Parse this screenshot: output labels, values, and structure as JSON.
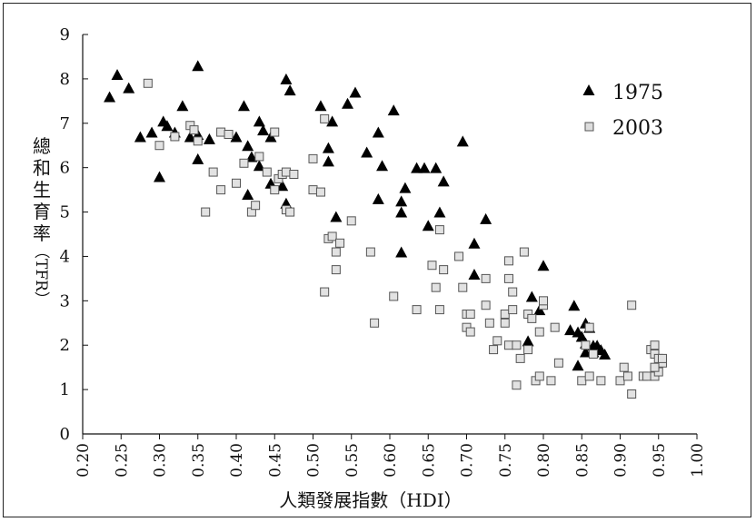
{
  "chart_data": {
    "type": "scatter",
    "title": "",
    "xlabel": "人類發展指數（HDI）",
    "ylabel_main": "總和生育率",
    "ylabel_abbrev": "（TFR）",
    "xlim": [
      0.2,
      1.0
    ],
    "ylim": [
      0,
      9
    ],
    "x_ticks": [
      "0.20",
      "0.25",
      "0.30",
      "0.35",
      "0.40",
      "0.45",
      "0.50",
      "0.55",
      "0.60",
      "0.65",
      "0.70",
      "0.75",
      "0.80",
      "0.85",
      "0.90",
      "0.95",
      "1.00"
    ],
    "y_ticks": [
      "0",
      "1",
      "2",
      "3",
      "4",
      "5",
      "6",
      "7",
      "8",
      "9"
    ],
    "grid": false,
    "legend_position": "top-right",
    "series": [
      {
        "name": "1975",
        "marker": "filled-triangle",
        "color": "#000000",
        "points": [
          [
            0.235,
            7.6
          ],
          [
            0.245,
            8.1
          ],
          [
            0.26,
            7.8
          ],
          [
            0.275,
            6.7
          ],
          [
            0.29,
            6.8
          ],
          [
            0.3,
            5.8
          ],
          [
            0.305,
            7.05
          ],
          [
            0.31,
            6.95
          ],
          [
            0.32,
            6.8
          ],
          [
            0.33,
            7.4
          ],
          [
            0.34,
            6.7
          ],
          [
            0.35,
            8.3
          ],
          [
            0.35,
            6.75
          ],
          [
            0.35,
            6.2
          ],
          [
            0.365,
            6.65
          ],
          [
            0.4,
            6.7
          ],
          [
            0.41,
            7.4
          ],
          [
            0.415,
            5.4
          ],
          [
            0.415,
            6.5
          ],
          [
            0.42,
            6.25
          ],
          [
            0.43,
            7.05
          ],
          [
            0.43,
            6.05
          ],
          [
            0.435,
            6.85
          ],
          [
            0.445,
            6.7
          ],
          [
            0.445,
            5.65
          ],
          [
            0.46,
            5.6
          ],
          [
            0.465,
            8.0
          ],
          [
            0.47,
            7.75
          ],
          [
            0.465,
            5.2
          ],
          [
            0.51,
            7.4
          ],
          [
            0.52,
            6.45
          ],
          [
            0.52,
            6.15
          ],
          [
            0.525,
            7.05
          ],
          [
            0.53,
            4.9
          ],
          [
            0.545,
            7.45
          ],
          [
            0.555,
            7.7
          ],
          [
            0.57,
            6.35
          ],
          [
            0.585,
            5.3
          ],
          [
            0.585,
            6.8
          ],
          [
            0.59,
            6.05
          ],
          [
            0.605,
            7.3
          ],
          [
            0.615,
            4.1
          ],
          [
            0.615,
            5.25
          ],
          [
            0.615,
            5.0
          ],
          [
            0.62,
            5.55
          ],
          [
            0.635,
            6.0
          ],
          [
            0.645,
            6.0
          ],
          [
            0.65,
            4.7
          ],
          [
            0.66,
            6.0
          ],
          [
            0.665,
            5.0
          ],
          [
            0.67,
            5.7
          ],
          [
            0.695,
            6.6
          ],
          [
            0.71,
            4.3
          ],
          [
            0.71,
            3.6
          ],
          [
            0.725,
            4.85
          ],
          [
            0.78,
            2.1
          ],
          [
            0.785,
            3.1
          ],
          [
            0.795,
            2.8
          ],
          [
            0.8,
            3.8
          ],
          [
            0.835,
            2.35
          ],
          [
            0.84,
            2.9
          ],
          [
            0.845,
            2.3
          ],
          [
            0.85,
            2.2
          ],
          [
            0.855,
            2.5
          ],
          [
            0.855,
            2.05
          ],
          [
            0.86,
            2.4
          ],
          [
            0.865,
            1.85
          ],
          [
            0.87,
            2.0
          ],
          [
            0.875,
            1.9
          ],
          [
            0.88,
            1.8
          ],
          [
            0.845,
            1.55
          ],
          [
            0.855,
            1.85
          ],
          [
            0.865,
            2.0
          ]
        ]
      },
      {
        "name": "2003",
        "marker": "open-square",
        "color": "#6f6f6f",
        "points": [
          [
            0.285,
            7.9
          ],
          [
            0.3,
            6.5
          ],
          [
            0.32,
            6.7
          ],
          [
            0.34,
            6.95
          ],
          [
            0.345,
            6.85
          ],
          [
            0.35,
            6.6
          ],
          [
            0.36,
            5.0
          ],
          [
            0.37,
            5.9
          ],
          [
            0.38,
            6.8
          ],
          [
            0.38,
            5.5
          ],
          [
            0.39,
            6.75
          ],
          [
            0.4,
            5.65
          ],
          [
            0.41,
            6.1
          ],
          [
            0.42,
            5.0
          ],
          [
            0.425,
            5.15
          ],
          [
            0.43,
            6.25
          ],
          [
            0.44,
            5.9
          ],
          [
            0.45,
            6.8
          ],
          [
            0.45,
            5.5
          ],
          [
            0.455,
            5.75
          ],
          [
            0.46,
            5.85
          ],
          [
            0.465,
            5.05
          ],
          [
            0.465,
            5.9
          ],
          [
            0.47,
            5.0
          ],
          [
            0.475,
            5.85
          ],
          [
            0.5,
            6.2
          ],
          [
            0.5,
            5.5
          ],
          [
            0.51,
            5.45
          ],
          [
            0.515,
            7.1
          ],
          [
            0.515,
            3.2
          ],
          [
            0.52,
            4.4
          ],
          [
            0.525,
            4.45
          ],
          [
            0.53,
            4.1
          ],
          [
            0.53,
            3.7
          ],
          [
            0.535,
            4.3
          ],
          [
            0.55,
            4.8
          ],
          [
            0.575,
            4.1
          ],
          [
            0.58,
            2.5
          ],
          [
            0.605,
            3.1
          ],
          [
            0.635,
            2.8
          ],
          [
            0.655,
            3.8
          ],
          [
            0.66,
            3.3
          ],
          [
            0.665,
            2.8
          ],
          [
            0.665,
            4.6
          ],
          [
            0.67,
            3.7
          ],
          [
            0.69,
            4.0
          ],
          [
            0.695,
            3.3
          ],
          [
            0.7,
            2.7
          ],
          [
            0.7,
            2.4
          ],
          [
            0.705,
            2.3
          ],
          [
            0.705,
            2.7
          ],
          [
            0.725,
            3.5
          ],
          [
            0.725,
            2.9
          ],
          [
            0.73,
            2.5
          ],
          [
            0.735,
            1.9
          ],
          [
            0.74,
            2.1
          ],
          [
            0.75,
            2.7
          ],
          [
            0.75,
            2.5
          ],
          [
            0.755,
            2.0
          ],
          [
            0.755,
            3.5
          ],
          [
            0.755,
            3.9
          ],
          [
            0.76,
            3.2
          ],
          [
            0.76,
            2.8
          ],
          [
            0.765,
            2.0
          ],
          [
            0.765,
            1.1
          ],
          [
            0.77,
            1.7
          ],
          [
            0.775,
            4.1
          ],
          [
            0.78,
            2.7
          ],
          [
            0.78,
            1.9
          ],
          [
            0.785,
            2.6
          ],
          [
            0.79,
            1.2
          ],
          [
            0.795,
            1.3
          ],
          [
            0.795,
            2.3
          ],
          [
            0.8,
            2.9
          ],
          [
            0.8,
            3.0
          ],
          [
            0.81,
            1.2
          ],
          [
            0.815,
            2.4
          ],
          [
            0.82,
            1.6
          ],
          [
            0.85,
            1.2
          ],
          [
            0.855,
            2.0
          ],
          [
            0.86,
            1.3
          ],
          [
            0.86,
            2.4
          ],
          [
            0.865,
            1.8
          ],
          [
            0.875,
            1.2
          ],
          [
            0.9,
            1.2
          ],
          [
            0.905,
            1.5
          ],
          [
            0.91,
            1.3
          ],
          [
            0.915,
            2.9
          ],
          [
            0.915,
            0.9
          ],
          [
            0.93,
            1.3
          ],
          [
            0.935,
            1.3
          ],
          [
            0.94,
            1.9
          ],
          [
            0.945,
            1.8
          ],
          [
            0.945,
            1.3
          ],
          [
            0.945,
            2.0
          ],
          [
            0.95,
            1.4
          ],
          [
            0.95,
            1.7
          ],
          [
            0.955,
            1.6
          ],
          [
            0.955,
            1.7
          ],
          [
            0.945,
            1.5
          ]
        ]
      }
    ]
  }
}
